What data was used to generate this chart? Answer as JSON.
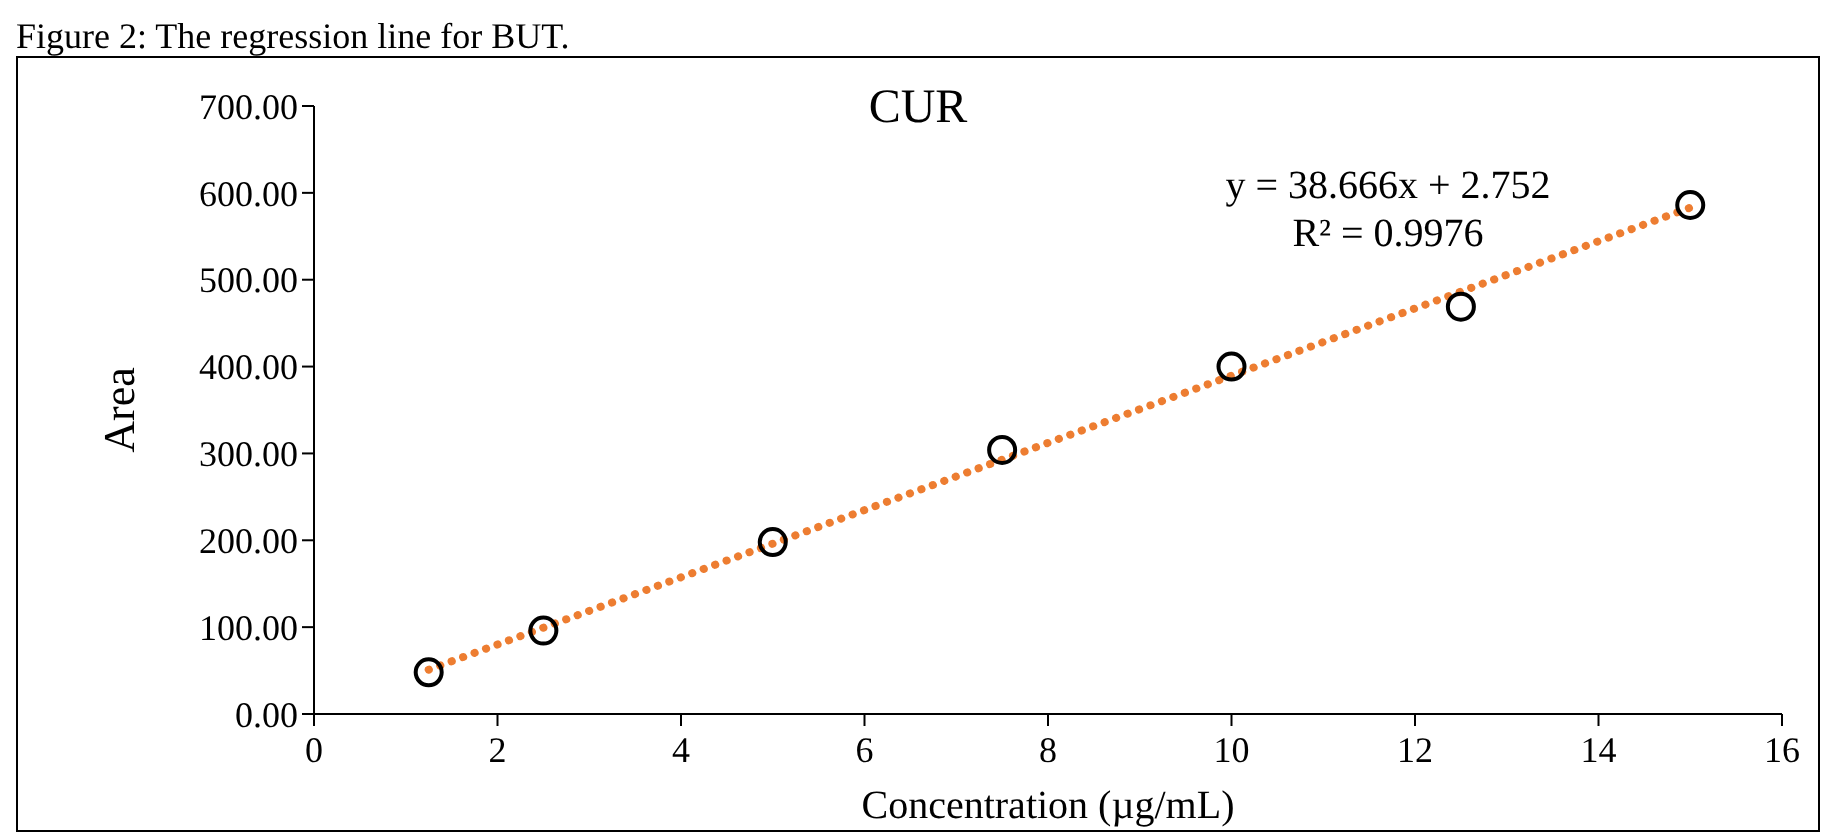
{
  "chart_data": {
    "type": "scatter",
    "title": "CUR",
    "xlabel": "Concentration (µg/mL)",
    "ylabel": "Area",
    "annotations": [
      "Figure 2: The regression line for BUT.",
      "y = 38.666x + 2.752",
      "R² = 0.9976"
    ],
    "xlim": [
      0,
      16
    ],
    "xticks": [
      0,
      2,
      4,
      6,
      8,
      10,
      12,
      14,
      16
    ],
    "ylim": [
      0,
      700
    ],
    "yticks": [
      {
        "value": 0,
        "label": "0.00"
      },
      {
        "value": 100,
        "label": "100.00"
      },
      {
        "value": 200,
        "label": "200.00"
      },
      {
        "value": 300,
        "label": "300.00"
      },
      {
        "value": 400,
        "label": "400.00"
      },
      {
        "value": 500,
        "label": "500.00"
      },
      {
        "value": 600,
        "label": "600.00"
      },
      {
        "value": 700,
        "label": "700.00"
      }
    ],
    "grid": false,
    "legend": false,
    "series": [
      {
        "color": "#000000",
        "marker": "circle",
        "x": [
          1.25,
          2.5,
          5,
          7.5,
          10,
          12.5,
          15
        ],
        "values": [
          48,
          96,
          198,
          304,
          400,
          469,
          586
        ]
      },
      {
        "type": "line",
        "color": "#ed7d31",
        "marker": "none",
        "line_style": "dotted",
        "x": [
          1.25,
          15
        ],
        "values": [
          51,
          583
        ]
      }
    ]
  }
}
